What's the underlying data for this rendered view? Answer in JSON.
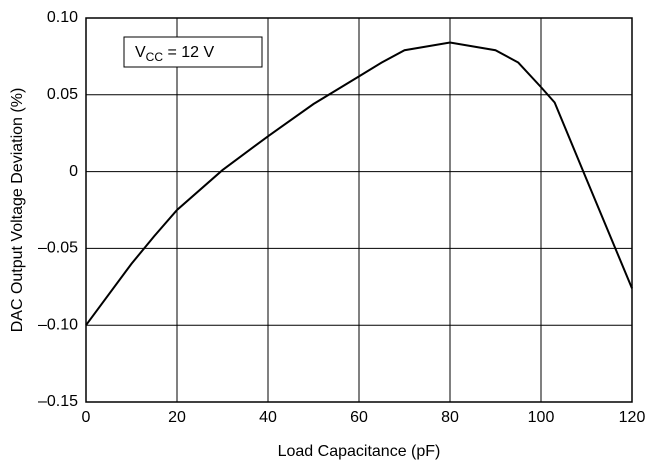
{
  "chart_data": {
    "type": "line",
    "xlabel": "Load Capacitance (pF)",
    "ylabel": "DAC Output Voltage Deviation (%)",
    "annotation": {
      "base": "V",
      "sub": "CC",
      "rest": " = 12 V"
    },
    "x": [
      0,
      10,
      15,
      20,
      30,
      40,
      50,
      60,
      65,
      70,
      80,
      90,
      95,
      100,
      103,
      110,
      120
    ],
    "series": [
      {
        "name": null,
        "color": "#000000",
        "values": [
          -0.1,
          -0.06,
          -0.042,
          -0.025,
          0.001,
          0.023,
          0.044,
          0.062,
          0.071,
          0.079,
          0.084,
          0.079,
          0.071,
          0.055,
          0.045,
          -0.005,
          -0.076
        ]
      }
    ],
    "xlim": [
      0,
      120
    ],
    "xticks": [
      0,
      20,
      40,
      60,
      80,
      100,
      120
    ],
    "ylim": [
      -0.15,
      0.1
    ],
    "yticks": [
      {
        "value": -0.15,
        "label": "–0.15"
      },
      {
        "value": -0.1,
        "label": "–0.10"
      },
      {
        "value": -0.05,
        "label": "–0.05"
      },
      0,
      0.05,
      {
        "value": 0.1,
        "label": "0.10"
      }
    ],
    "grid": true
  }
}
